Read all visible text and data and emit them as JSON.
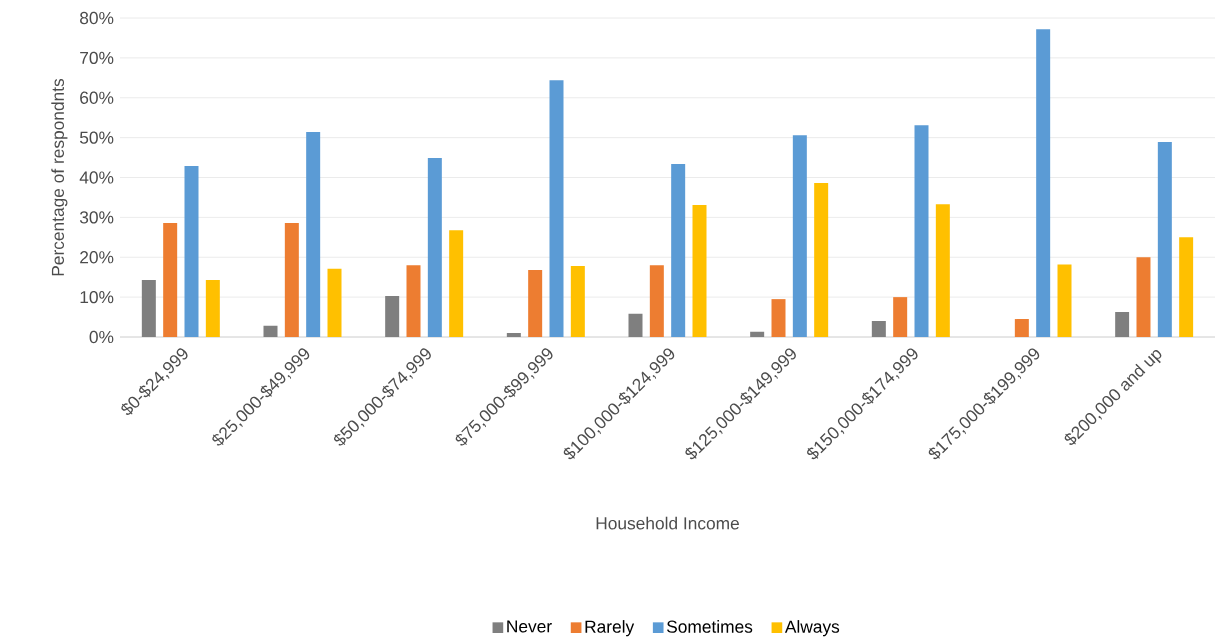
{
  "chart_data": {
    "type": "bar",
    "xlabel": "Household Income",
    "ylabel": "Percentage of respondnts",
    "categories": [
      "$0-$24,999",
      "$25,000-$49,999",
      "$50,000-$74,999",
      "$75,000-$99,999",
      "$100,000-$124,999",
      "$125,000-$149,999",
      "$150,000-$174,999",
      "$175,000-$199,999",
      "$200,000 and up"
    ],
    "series": [
      {
        "name": "Never",
        "color": "#7f7f7f",
        "values": [
          14.3,
          2.8,
          10.3,
          1.0,
          5.8,
          1.3,
          4.0,
          0,
          6.3
        ]
      },
      {
        "name": "Rarely",
        "color": "#ed7d31",
        "values": [
          28.6,
          28.6,
          18.0,
          16.8,
          18.0,
          9.5,
          10.0,
          4.5,
          20.0
        ]
      },
      {
        "name": "Sometimes",
        "color": "#5b9bd5",
        "values": [
          42.9,
          51.4,
          44.9,
          64.4,
          43.4,
          50.6,
          53.1,
          77.2,
          48.9
        ]
      },
      {
        "name": "Always",
        "color": "#ffc000",
        "values": [
          14.3,
          17.1,
          26.8,
          17.8,
          33.1,
          38.6,
          33.3,
          18.2,
          25.0
        ]
      }
    ],
    "ylim": [
      0,
      80
    ],
    "yticks": [
      {
        "value": 0,
        "label": "0%"
      },
      {
        "value": 10,
        "label": "10%"
      },
      {
        "value": 20,
        "label": "20%"
      },
      {
        "value": 30,
        "label": "30%"
      },
      {
        "value": 40,
        "label": "40%"
      },
      {
        "value": 50,
        "label": "50%"
      },
      {
        "value": 60,
        "label": "60%"
      },
      {
        "value": 70,
        "label": "70%"
      },
      {
        "value": 80,
        "label": "80%"
      }
    ],
    "grid": "y",
    "legend": "bottom"
  }
}
